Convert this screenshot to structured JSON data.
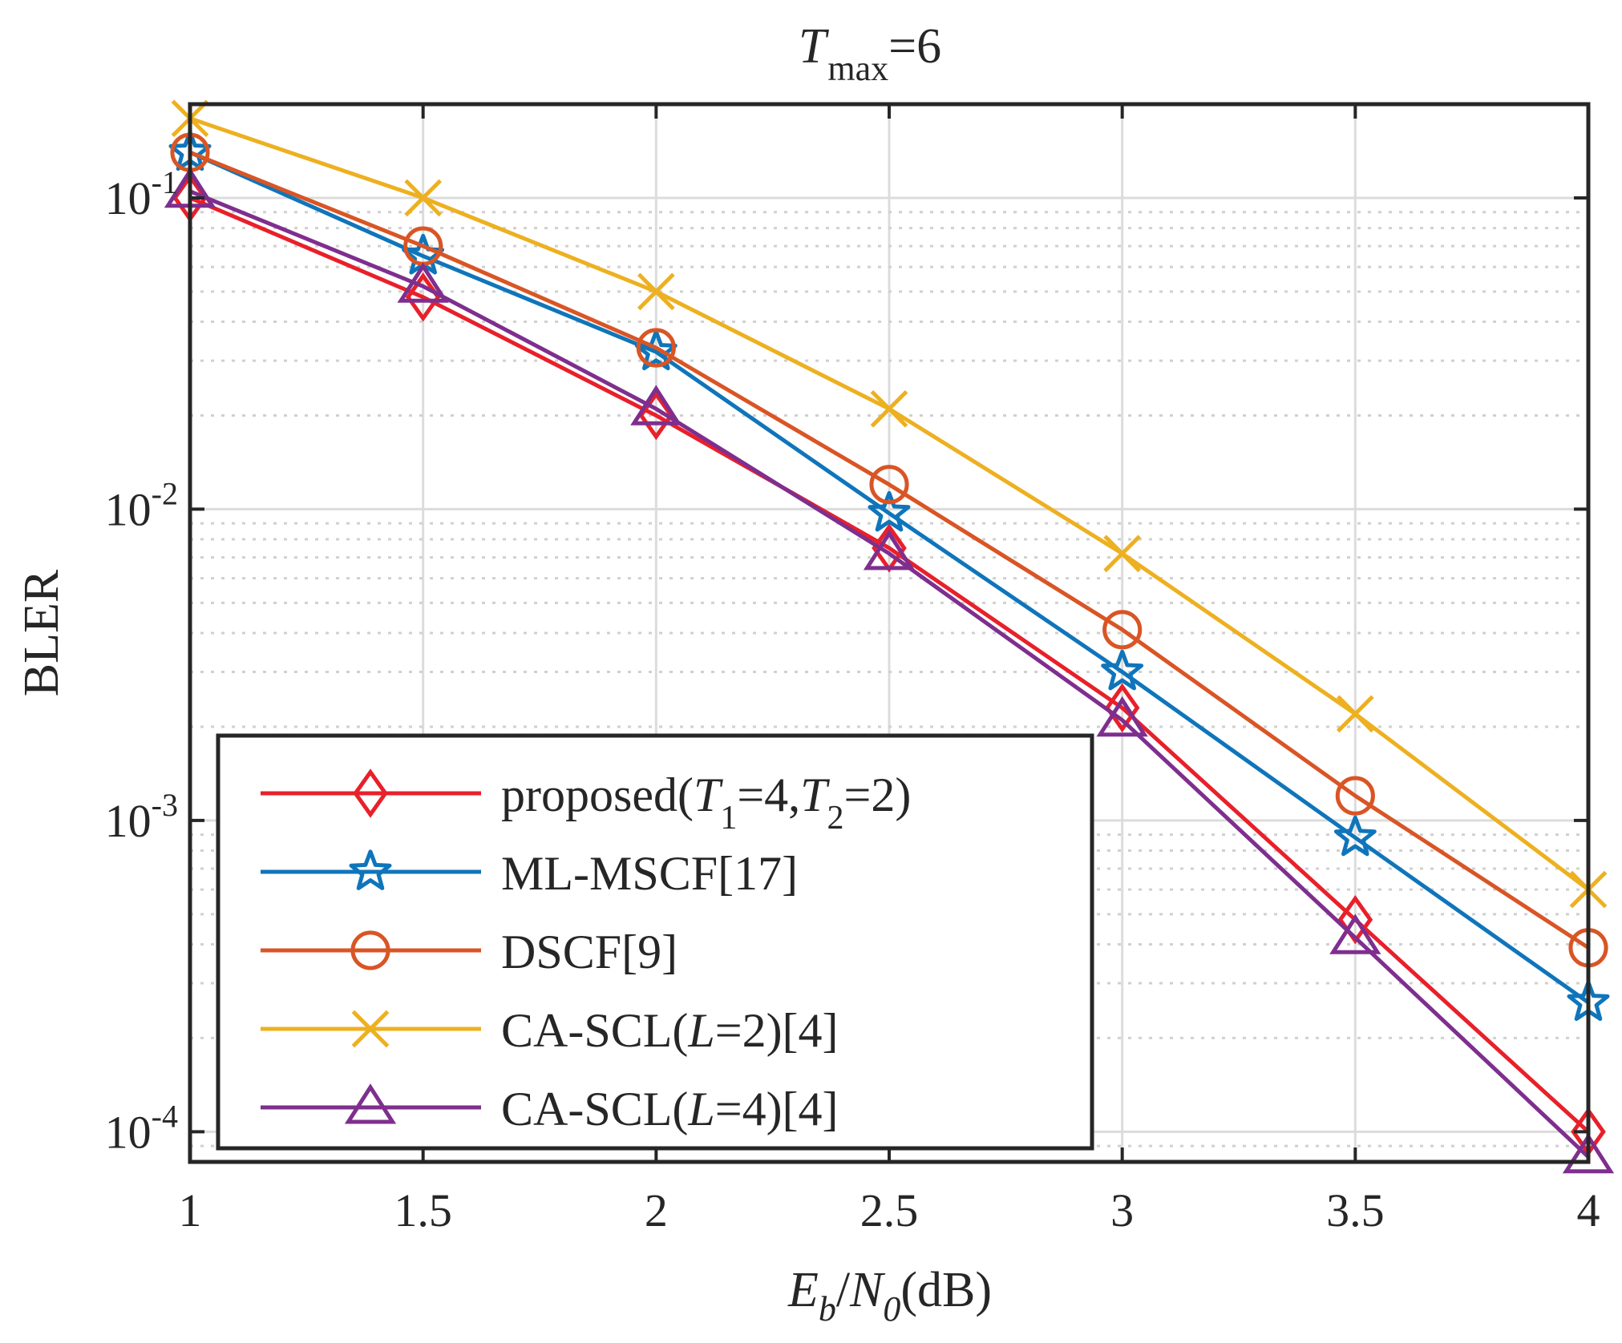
{
  "chart_data": {
    "type": "line",
    "title": {
      "base": "T",
      "sub": "max",
      "tail": "=6"
    },
    "xlabel": {
      "e": "E",
      "b": "b",
      "slash": "/",
      "n": "N",
      "zero": "0",
      "unit": "(dB)"
    },
    "ylabel": "BLER",
    "xscale": "linear",
    "yscale": "log",
    "xlim": [
      1,
      4
    ],
    "ylim": [
      8e-05,
      0.2
    ],
    "grid": true,
    "legend_position": "bottom-left",
    "x": [
      1,
      1.5,
      2,
      2.5,
      3,
      3.5,
      4
    ],
    "x_tick_labels": [
      "1",
      "1.5",
      "2",
      "2.5",
      "3",
      "3.5",
      "4"
    ],
    "y_ticks": [
      {
        "value": 0.1,
        "base": "10",
        "exp": "-1"
      },
      {
        "value": 0.01,
        "base": "10",
        "exp": "-2"
      },
      {
        "value": 0.001,
        "base": "10",
        "exp": "-3"
      },
      {
        "value": 0.0001,
        "base": "10",
        "exp": "-4"
      }
    ],
    "series": [
      {
        "name": "proposed(T1=4,T2=2)",
        "legend": {
          "prefix": "proposed(",
          "v1": "T",
          "s1": "1",
          "mid": "=4,",
          "v2": "T",
          "s2": "2",
          "suffix": "=2)"
        },
        "color": "#e8202a",
        "marker": "diamond",
        "values": [
          0.1,
          0.048,
          0.02,
          0.0075,
          0.0023,
          0.00048,
          0.0001
        ]
      },
      {
        "name": "ML-MSCF[17]",
        "legend": {
          "prefix": "ML-MSCF[17]"
        },
        "color": "#0f75bb",
        "marker": "star",
        "values": [
          0.14,
          0.065,
          0.032,
          0.0097,
          0.003,
          0.00088,
          0.00026
        ]
      },
      {
        "name": "DSCF[9]",
        "legend": {
          "prefix": "DSCF[9]"
        },
        "color": "#d95525",
        "marker": "circle",
        "values": [
          0.14,
          0.07,
          0.033,
          0.012,
          0.0041,
          0.0012,
          0.00039
        ]
      },
      {
        "name": "CA-SCL(L=2)[4]",
        "legend": {
          "prefix": "CA-SCL(",
          "v1": "L",
          "mid": "=2)[4]"
        },
        "color": "#edb020",
        "marker": "x",
        "values": [
          0.18,
          0.1,
          0.05,
          0.021,
          0.0072,
          0.0022,
          0.0006
        ]
      },
      {
        "name": "CA-SCL(L=4)[4]",
        "legend": {
          "prefix": "CA-SCL(",
          "v1": "L",
          "mid": "=4)[4]"
        },
        "color": "#7e2f8e",
        "marker": "triangle",
        "values": [
          0.105,
          0.052,
          0.021,
          0.0072,
          0.0021,
          0.00042,
          8.3e-05
        ]
      }
    ]
  }
}
